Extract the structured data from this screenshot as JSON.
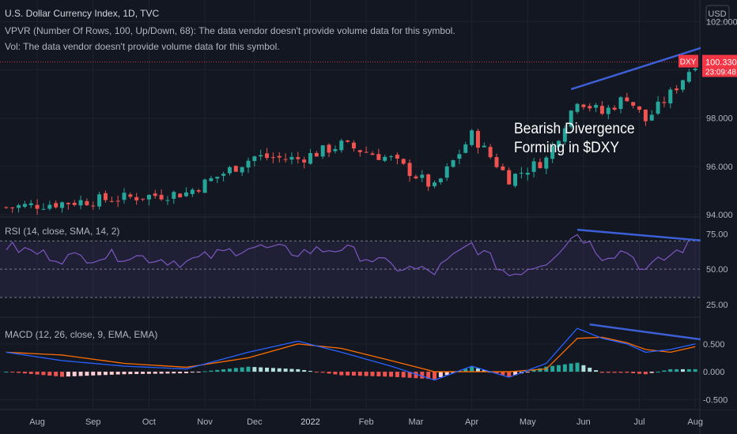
{
  "header": {
    "title": "U.S. Dollar Currency Index, 1D, TVC",
    "vpvr": "VPVR (Number Of Rows, 100, Up/Down, 68): The data vendor doesn't provide volume data for this symbol.",
    "vol": "Vol: The data vendor doesn't provide volume data for this symbol."
  },
  "annotation": {
    "line1": "Bearish Divergence",
    "line2": "Forming in $DXY"
  },
  "colors": {
    "background": "#131722",
    "up": "#26a69a",
    "down": "#ef5350",
    "rsi_line": "#7e57c2",
    "rsi_band": "rgba(126,87,194,0.12)",
    "macd_line": "#2962ff",
    "signal_line": "#ff6d00",
    "trendline": "#3d5fd6",
    "price_tag": "#f23645"
  },
  "chart_data": [
    {
      "type": "candlestick",
      "title": "U.S. Dollar Currency Index, 1D, TVC",
      "currency": "USD",
      "ylim": [
        93.9,
        102.9
      ],
      "yticks": [
        94.0,
        96.0,
        98.0,
        100.0,
        102.0
      ],
      "ytick_labels": [
        "94.000",
        "96.000",
        "98.000",
        "",
        "102.000"
      ],
      "last_price": {
        "symbol": "DXY",
        "value": "100.330",
        "countdown": "23:09:48"
      },
      "trend_segments": [
        {
          "x": [
            1,
            30
          ],
          "y": [
            94.3,
            94.9
          ]
        },
        {
          "x": [
            30,
            41
          ],
          "y": [
            94.9,
            96.4
          ]
        },
        {
          "x": [
            41,
            48
          ],
          "y": [
            96.4,
            96.3
          ]
        },
        {
          "x": [
            48,
            55
          ],
          "y": [
            96.3,
            96.9
          ]
        },
        {
          "x": [
            55,
            63
          ],
          "y": [
            96.9,
            96.3
          ]
        },
        {
          "x": [
            63,
            70
          ],
          "y": [
            96.3,
            95.1
          ]
        },
        {
          "x": [
            70,
            76
          ],
          "y": [
            95.1,
            97.3
          ]
        },
        {
          "x": [
            76,
            82
          ],
          "y": [
            97.3,
            95.5
          ]
        },
        {
          "x": [
            82,
            88
          ],
          "y": [
            95.5,
            96.3
          ]
        },
        {
          "x": [
            88,
            93
          ],
          "y": [
            96.3,
            98.8
          ]
        },
        {
          "x": [
            93,
            97
          ],
          "y": [
            98.8,
            98.2
          ]
        },
        {
          "x": [
            97,
            101
          ],
          "y": [
            98.2,
            98.9
          ]
        },
        {
          "x": [
            101,
            104
          ],
          "y": [
            98.9,
            97.9
          ]
        },
        {
          "x": [
            104,
            108
          ],
          "y": [
            97.9,
            99.0
          ]
        },
        {
          "x": [
            108,
            112
          ],
          "y": [
            99.0,
            100.3
          ]
        }
      ],
      "trendline": {
        "x": [
          92,
          114
        ],
        "y": [
          99.2,
          101.0
        ]
      }
    },
    {
      "type": "line",
      "title": "RSI (14, close, SMA, 14, 2)",
      "ylim": [
        16,
        87
      ],
      "bands": [
        70,
        50,
        30
      ],
      "yticks": [
        75,
        50,
        25
      ],
      "ytick_labels": [
        "75.00",
        "50.00",
        "25.00"
      ],
      "series_points": {
        "x": [
          1,
          10,
          20,
          30,
          40,
          48,
          55,
          63,
          70,
          76,
          82,
          88,
          93,
          97,
          101,
          104,
          108,
          112
        ],
        "y": [
          66,
          58,
          60,
          55,
          66,
          62,
          65,
          52,
          48,
          68,
          46,
          56,
          76,
          60,
          63,
          49,
          60,
          70
        ]
      },
      "trendline": {
        "x": [
          93,
          114
        ],
        "y": [
          78,
          70
        ]
      }
    },
    {
      "type": "line",
      "title": "MACD (12, 26, close, 9, EMA, EMA)",
      "ylim": [
        -0.68,
        0.98
      ],
      "yticks": [
        0.5,
        0.0,
        -0.5
      ],
      "ytick_labels": [
        "0.500",
        "0.000",
        "-0.500"
      ],
      "macd_points": {
        "x": [
          1,
          10,
          20,
          30,
          40,
          48,
          55,
          63,
          70,
          76,
          82,
          88,
          93,
          97,
          101,
          104,
          108,
          112
        ],
        "y": [
          0.35,
          0.2,
          0.1,
          0.05,
          0.35,
          0.55,
          0.35,
          0.1,
          -0.15,
          0.1,
          -0.1,
          0.15,
          0.78,
          0.6,
          0.5,
          0.35,
          0.4,
          0.5
        ]
      },
      "signal_points": {
        "x": [
          1,
          10,
          20,
          30,
          40,
          48,
          55,
          63,
          70,
          76,
          82,
          88,
          93,
          97,
          101,
          104,
          108,
          112
        ],
        "y": [
          0.35,
          0.3,
          0.15,
          0.08,
          0.25,
          0.5,
          0.42,
          0.2,
          0.0,
          0.0,
          0.0,
          0.05,
          0.6,
          0.62,
          0.52,
          0.4,
          0.35,
          0.45
        ]
      },
      "trendline": {
        "x": [
          95,
          117
        ],
        "y": [
          0.85,
          0.52
        ]
      }
    }
  ],
  "xaxis": {
    "labels": [
      "Aug",
      "Sep",
      "Oct",
      "Nov",
      "Dec",
      "2022",
      "Feb",
      "Mar",
      "Apr",
      "May",
      "Jun",
      "Jul",
      "Aug"
    ],
    "positions": [
      6,
      15,
      24,
      33,
      41,
      50,
      59,
      67,
      76,
      85,
      94,
      103,
      112
    ]
  }
}
